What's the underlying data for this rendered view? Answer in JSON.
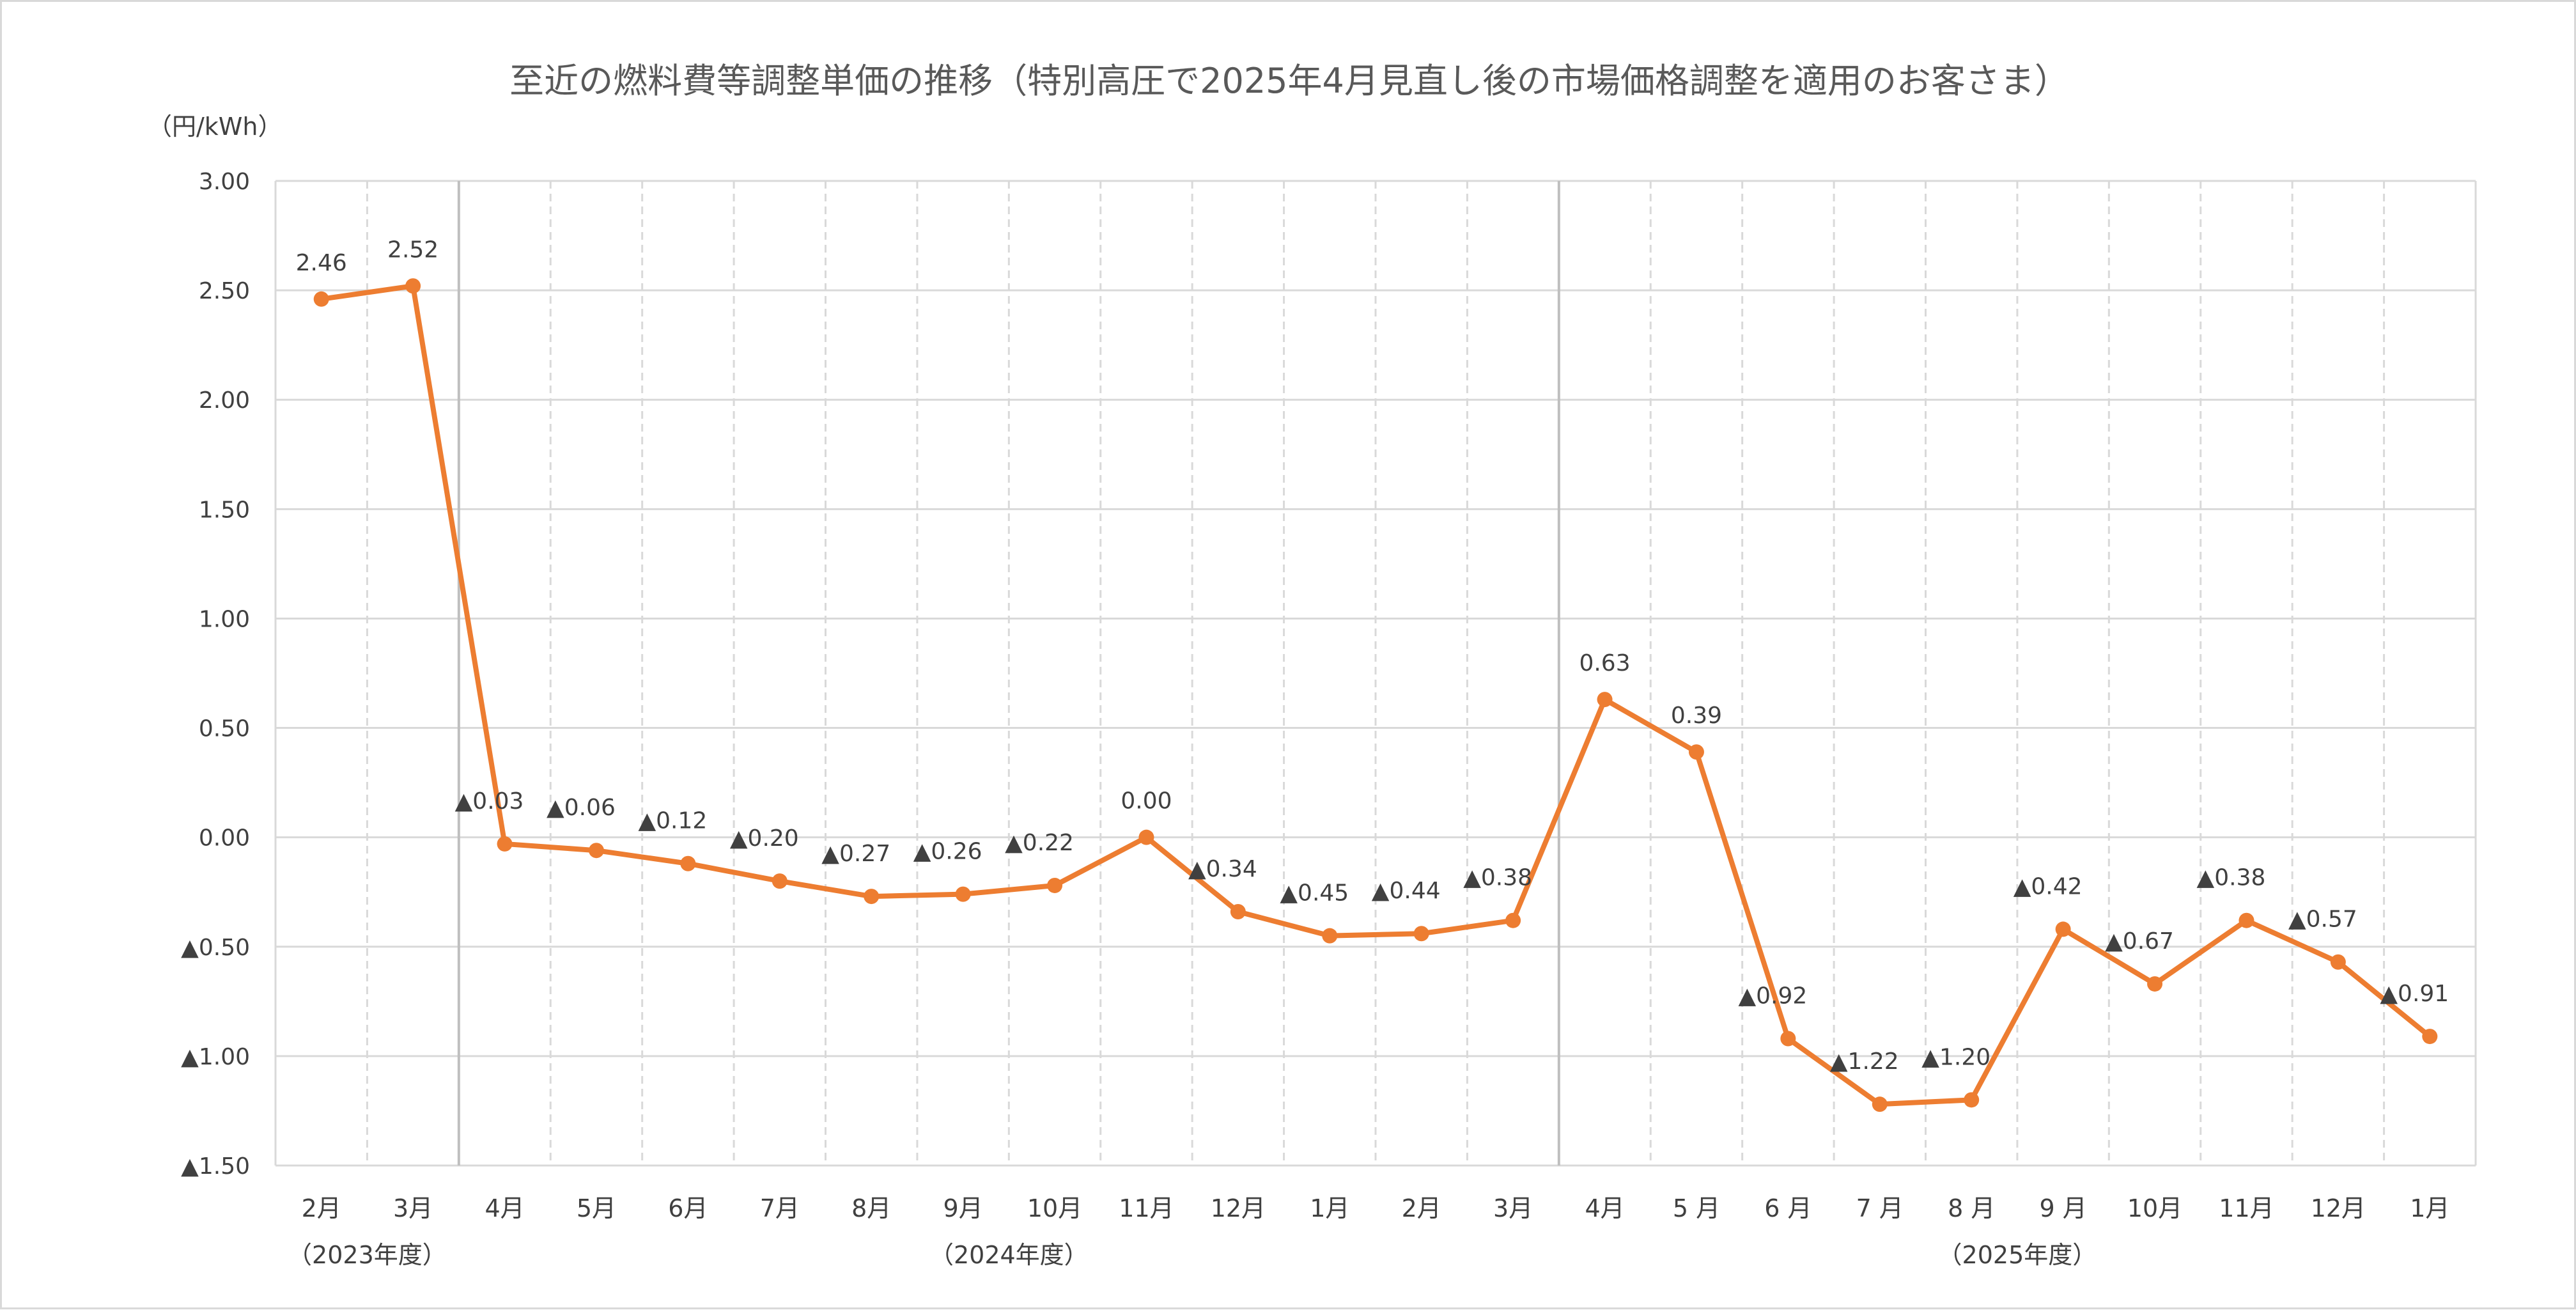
{
  "chart_data": {
    "type": "line",
    "title": "至近の燃料費等調整単価の推移（特別高圧で2025年4月見直し後の市場価格調整を適用のお客さま）",
    "unit_label": "（円/kWh）",
    "ylim": [
      -1.5,
      3.0
    ],
    "y_ticks": [
      3.0,
      2.5,
      2.0,
      1.5,
      1.0,
      0.5,
      0.0,
      -0.5,
      -1.0,
      -1.5
    ],
    "y_tick_labels": [
      "3.00",
      "2.50",
      "2.00",
      "1.50",
      "1.00",
      "0.50",
      "0.00",
      "▲0.50",
      "▲1.00",
      "▲1.50"
    ],
    "categories": [
      "2月",
      "3月",
      "4月",
      "5月",
      "6月",
      "7月",
      "8月",
      "9月",
      "10月",
      "11月",
      "12月",
      "1月",
      "2月",
      "3月",
      "4月",
      "5 月",
      "6 月",
      "7 月",
      "8 月",
      "9 月",
      "10月",
      "11月",
      "12月",
      "1月"
    ],
    "series": [
      {
        "values": [
          2.46,
          2.52,
          -0.03,
          -0.06,
          -0.12,
          -0.2,
          -0.27,
          -0.26,
          -0.22,
          0.0,
          -0.34,
          -0.45,
          -0.44,
          -0.38,
          0.63,
          0.39,
          -0.92,
          -1.22,
          -1.2,
          -0.42,
          -0.67,
          -0.38,
          -0.57,
          -0.91
        ],
        "data_labels": [
          "2.46",
          "2.52",
          "▲0.03",
          "▲0.06",
          "▲0.12",
          "▲0.20",
          "▲0.27",
          "▲0.26",
          "▲0.22",
          "0.00",
          "▲0.34",
          "▲0.45",
          "▲0.44",
          "▲0.38",
          "0.63",
          "0.39",
          "▲0.92",
          "▲1.22",
          "▲1.20",
          "▲0.42",
          "▲0.67",
          "▲0.38",
          "▲0.57",
          "▲0.91"
        ],
        "color": "#ED7D31"
      }
    ],
    "fiscal_years": [
      {
        "label": "（2023年度）",
        "start": 0,
        "end": 1
      },
      {
        "label": "（2024年度）",
        "start": 2,
        "end": 13
      },
      {
        "label": "（2025年度）",
        "start": 14,
        "end": 23
      }
    ],
    "grid": true,
    "legend": "none",
    "colors": {
      "line": "#ED7D31",
      "grid": "#d9d9d9",
      "year_divider": "#bfbfbf",
      "text": "#404040",
      "title": "#595959",
      "negative_marker": "#404040"
    }
  }
}
